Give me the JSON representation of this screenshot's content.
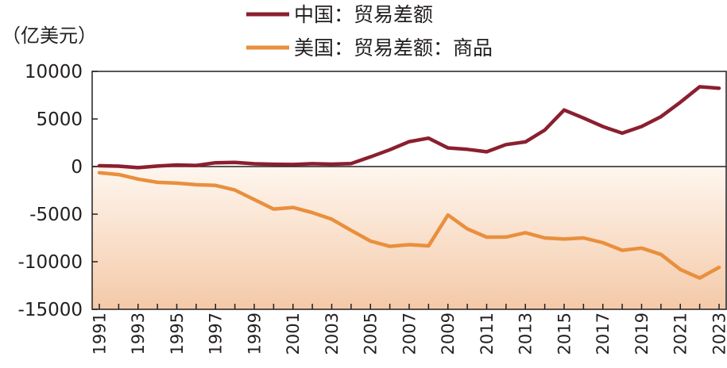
{
  "chart_data": {
    "type": "line",
    "unit_label": "（亿美元）",
    "x": [
      1991,
      1992,
      1993,
      1994,
      1995,
      1996,
      1997,
      1998,
      1999,
      2000,
      2001,
      2002,
      2003,
      2004,
      2005,
      2006,
      2007,
      2008,
      2009,
      2010,
      2011,
      2012,
      2013,
      2014,
      2015,
      2016,
      2017,
      2018,
      2019,
      2020,
      2021,
      2022,
      2023
    ],
    "x_tick_labels": [
      "1991",
      "1993",
      "1995",
      "1997",
      "1999",
      "2001",
      "2003",
      "2005",
      "2007",
      "2009",
      "2011",
      "2013",
      "2015",
      "2017",
      "2019",
      "2021",
      "2023"
    ],
    "y_tick_labels": [
      "10000",
      "5000",
      "0",
      "-5000",
      "-10000",
      "-15000"
    ],
    "y_ticks": [
      10000,
      5000,
      0,
      -5000,
      -10000,
      -15000
    ],
    "ylim": [
      -15000,
      10000
    ],
    "xlim": [
      1991,
      2023
    ],
    "legend_position": "top-center",
    "series": [
      {
        "name": "中国：贸易差额",
        "color": "#8b1f2f",
        "values": [
          80,
          40,
          -120,
          50,
          170,
          120,
          400,
          430,
          290,
          240,
          220,
          300,
          250,
          320,
          1020,
          1770,
          2620,
          2980,
          1960,
          1810,
          1550,
          2310,
          2590,
          3830,
          5940,
          5100,
          4200,
          3510,
          4210,
          5240,
          6760,
          8380,
          8230
        ]
      },
      {
        "name": "美国：贸易差额：商品",
        "color": "#e98f3d",
        "values": [
          -650,
          -840,
          -1320,
          -1660,
          -1740,
          -1910,
          -1980,
          -2470,
          -3470,
          -4470,
          -4300,
          -4840,
          -5530,
          -6700,
          -7830,
          -8380,
          -8210,
          -8330,
          -5090,
          -6550,
          -7420,
          -7410,
          -6950,
          -7500,
          -7620,
          -7500,
          -8000,
          -8800,
          -8570,
          -9230,
          -10820,
          -11720,
          -10590
        ]
      }
    ],
    "grid": false
  }
}
